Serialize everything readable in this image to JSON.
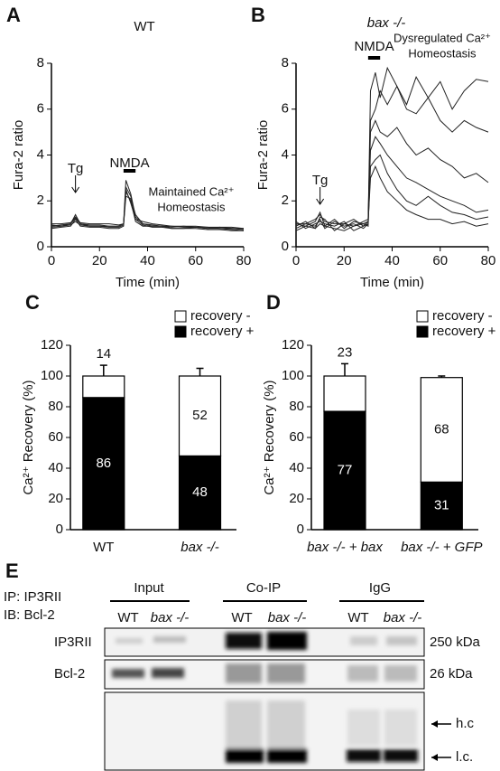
{
  "chart_data": [
    {
      "type": "line",
      "panel": "A",
      "title": "WT",
      "ylabel": "Fura-2 ratio",
      "xlabel": "Time (min)",
      "xlim": [
        0,
        80
      ],
      "xticks": [
        0,
        20,
        40,
        60,
        80
      ],
      "ylim": [
        0,
        8
      ],
      "yticks": [
        0,
        2,
        4,
        6,
        8
      ],
      "x": [
        0,
        4,
        8,
        10,
        12,
        16,
        20,
        24,
        28,
        30,
        31,
        33,
        35,
        38,
        42,
        46,
        50,
        55,
        60,
        65,
        70,
        75,
        80
      ],
      "series": [
        {
          "color": "#222222",
          "values": [
            0.9,
            0.95,
            1.0,
            1.4,
            1.0,
            0.9,
            0.9,
            0.9,
            0.9,
            1.0,
            2.9,
            2.3,
            1.3,
            1.0,
            0.9,
            0.9,
            0.8,
            0.8,
            0.85,
            0.8,
            0.8,
            0.75,
            0.7
          ]
        },
        {
          "color": "#222222",
          "values": [
            0.8,
            0.85,
            0.9,
            1.2,
            0.9,
            0.85,
            0.85,
            0.8,
            0.8,
            0.9,
            2.6,
            2.2,
            1.2,
            0.95,
            0.85,
            0.85,
            0.8,
            0.8,
            0.8,
            0.75,
            0.75,
            0.7,
            0.7
          ]
        },
        {
          "color": "#222222",
          "values": [
            1.0,
            1.0,
            1.05,
            1.3,
            1.05,
            1.0,
            1.0,
            1.0,
            0.95,
            1.0,
            2.4,
            2.0,
            1.1,
            0.9,
            0.9,
            0.9,
            0.9,
            0.85,
            0.85,
            0.85,
            0.8,
            0.8,
            0.8
          ]
        },
        {
          "color": "#222222",
          "values": [
            0.85,
            0.9,
            0.95,
            1.1,
            0.95,
            0.9,
            0.9,
            0.85,
            0.85,
            0.95,
            2.2,
            2.1,
            1.4,
            1.0,
            0.95,
            0.9,
            0.85,
            0.9,
            0.85,
            0.8,
            0.85,
            0.8,
            0.75
          ]
        },
        {
          "color": "#222222",
          "values": [
            0.95,
            0.9,
            1.0,
            1.25,
            1.0,
            0.95,
            0.95,
            0.9,
            0.9,
            1.0,
            2.5,
            1.9,
            1.2,
            1.1,
            1.0,
            0.95,
            0.9,
            0.9,
            0.9,
            0.85,
            0.85,
            0.85,
            0.8
          ]
        }
      ],
      "annotations": [
        {
          "text": "Tg",
          "x": 10
        },
        {
          "text": "NMDA",
          "x": [
            30,
            35
          ]
        }
      ],
      "note": [
        "Maintained Ca²⁺",
        "Homeostasis"
      ]
    },
    {
      "type": "line",
      "panel": "B",
      "title": "bax -/-",
      "ylabel": "Fura-2 ratio",
      "xlabel": "Time (min)",
      "xlim": [
        0,
        80
      ],
      "xticks": [
        0,
        20,
        40,
        60,
        80
      ],
      "ylim": [
        0,
        8
      ],
      "yticks": [
        0,
        2,
        4,
        6,
        8
      ],
      "x": [
        0,
        4,
        8,
        10,
        12,
        16,
        20,
        24,
        28,
        30,
        31,
        33,
        35,
        38,
        42,
        46,
        50,
        55,
        60,
        65,
        70,
        75,
        80
      ],
      "series": [
        {
          "color": "#222222",
          "values": [
            1.0,
            0.9,
            1.1,
            1.5,
            0.9,
            1.2,
            0.8,
            1.1,
            1.0,
            1.1,
            6.8,
            7.6,
            6.5,
            7.8,
            7.0,
            6.2,
            7.4,
            6.5,
            7.2,
            6.0,
            6.8,
            7.3,
            7.2
          ]
        },
        {
          "color": "#222222",
          "values": [
            0.9,
            1.1,
            0.8,
            1.3,
            1.2,
            0.7,
            1.0,
            0.9,
            1.1,
            1.2,
            5.5,
            6.0,
            6.8,
            6.2,
            7.0,
            6.0,
            5.8,
            6.5,
            5.5,
            5.0,
            5.5,
            5.2,
            5.0
          ]
        },
        {
          "color": "#222222",
          "values": [
            0.8,
            1.0,
            0.9,
            1.2,
            0.8,
            1.1,
            0.9,
            1.0,
            0.8,
            1.0,
            5.0,
            5.5,
            5.0,
            4.8,
            5.2,
            4.5,
            4.0,
            4.3,
            3.8,
            3.5,
            3.0,
            3.2,
            2.8
          ]
        },
        {
          "color": "#222222",
          "values": [
            1.1,
            0.8,
            1.0,
            1.1,
            1.0,
            0.9,
            1.1,
            0.7,
            0.9,
            1.0,
            4.2,
            4.8,
            4.5,
            4.0,
            3.5,
            3.0,
            2.8,
            2.5,
            2.2,
            2.0,
            1.8,
            1.5,
            1.6
          ]
        },
        {
          "color": "#222222",
          "values": [
            0.7,
            0.9,
            0.8,
            1.0,
            0.9,
            0.8,
            0.7,
            0.9,
            1.0,
            0.9,
            3.5,
            3.8,
            4.0,
            3.2,
            2.5,
            2.0,
            1.8,
            2.2,
            1.8,
            1.5,
            1.4,
            1.2,
            1.3
          ]
        },
        {
          "color": "#222222",
          "values": [
            1.0,
            1.0,
            1.2,
            1.4,
            1.1,
            1.0,
            1.0,
            1.2,
            0.9,
            1.1,
            3.0,
            3.5,
            3.0,
            2.4,
            2.0,
            1.6,
            1.4,
            1.2,
            1.2,
            1.0,
            1.1,
            0.9,
            1.0
          ]
        }
      ],
      "annotations": [
        {
          "text": "Tg",
          "x": 10
        },
        {
          "text": "NMDA",
          "x": [
            30,
            35
          ]
        }
      ],
      "note": [
        "Dysregulated Ca²⁺",
        "Homeostasis"
      ]
    },
    {
      "type": "bar",
      "panel": "C",
      "stacked": true,
      "ylabel": "Ca²⁺ Recovery (%)",
      "categories": [
        "WT",
        "bax -/-"
      ],
      "ylim": [
        0,
        120
      ],
      "yticks": [
        0,
        20,
        40,
        60,
        80,
        100,
        120
      ],
      "legend": "top-right",
      "series": [
        {
          "name": "recovery +",
          "color": "#000000",
          "values": [
            86,
            48
          ],
          "errors": [
            8,
            5
          ],
          "annotations": [
            null,
            "*"
          ]
        },
        {
          "name": "recovery -",
          "color": "#ffffff",
          "values": [
            14,
            52
          ],
          "errors": [
            7,
            5
          ]
        }
      ]
    },
    {
      "type": "bar",
      "panel": "D",
      "stacked": true,
      "ylabel": "Ca²⁺ Recovery (%)",
      "categories": [
        "bax -/- + bax",
        "bax -/- + GFP"
      ],
      "ylim": [
        0,
        120
      ],
      "yticks": [
        0,
        20,
        40,
        60,
        80,
        100,
        120
      ],
      "legend": "top-right",
      "series": [
        {
          "name": "recovery +",
          "color": "#000000",
          "values": [
            77,
            31
          ],
          "errors": [
            8,
            1
          ],
          "annotations": [
            null,
            "*"
          ]
        },
        {
          "name": "recovery -",
          "color": "#ffffff",
          "values": [
            23,
            68
          ],
          "errors": [
            8,
            1
          ]
        }
      ]
    }
  ],
  "blot": {
    "panel": "E",
    "ip": "IP: IP3RII",
    "ib": "IB: Bcl-2",
    "groups": [
      {
        "name": "Input",
        "lanes": [
          "WT",
          "bax -/-"
        ]
      },
      {
        "name": "Co-IP",
        "lanes": [
          "WT",
          "bax -/-"
        ]
      },
      {
        "name": "IgG",
        "lanes": [
          "WT",
          "bax -/-"
        ]
      }
    ],
    "rows": [
      {
        "name": "IP3RII",
        "size": "250 kDa"
      },
      {
        "name": "Bcl-2",
        "size": "26 kDa"
      }
    ],
    "chains": [
      "h.c",
      "l.c."
    ]
  }
}
